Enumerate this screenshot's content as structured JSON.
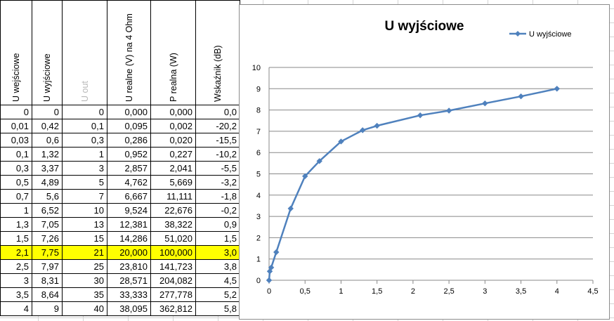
{
  "sheet": {
    "headers": [
      {
        "label": "U wejściowe",
        "muted": false
      },
      {
        "label": "U wyjściowe",
        "muted": false
      },
      {
        "label": "U out",
        "muted": true
      },
      {
        "label": "U realne (V) na 4 Ohm",
        "muted": false
      },
      {
        "label": "P realna (W)",
        "muted": false
      },
      {
        "label": "Wskaźnik (dB)",
        "muted": false
      }
    ],
    "rows": [
      [
        "0",
        "0",
        "0",
        "0,000",
        "0,000",
        "0,0"
      ],
      [
        "0,01",
        "0,42",
        "0,1",
        "0,095",
        "0,002",
        "-20,2"
      ],
      [
        "0,03",
        "0,6",
        "0,3",
        "0,286",
        "0,020",
        "-15,5"
      ],
      [
        "0,1",
        "1,32",
        "1",
        "0,952",
        "0,227",
        "-10,2"
      ],
      [
        "0,3",
        "3,37",
        "3",
        "2,857",
        "2,041",
        "-5,5"
      ],
      [
        "0,5",
        "4,89",
        "5",
        "4,762",
        "5,669",
        "-3,2"
      ],
      [
        "0,7",
        "5,6",
        "7",
        "6,667",
        "11,111",
        "-1,8"
      ],
      [
        "1",
        "6,52",
        "10",
        "9,524",
        "22,676",
        "-0,2"
      ],
      [
        "1,3",
        "7,05",
        "13",
        "12,381",
        "38,322",
        "0,9"
      ],
      [
        "1,5",
        "7,26",
        "15",
        "14,286",
        "51,020",
        "1,5"
      ],
      [
        "2,1",
        "7,75",
        "21",
        "20,000",
        "100,000",
        "3,0"
      ],
      [
        "2,5",
        "7,97",
        "25",
        "23,810",
        "141,723",
        "3,8"
      ],
      [
        "3",
        "8,31",
        "30",
        "28,571",
        "204,082",
        "4,5"
      ],
      [
        "3,5",
        "8,64",
        "35",
        "33,333",
        "277,778",
        "5,2"
      ],
      [
        "4",
        "9",
        "40",
        "38,095",
        "362,812",
        "5,8"
      ]
    ],
    "highlight_row_index": 10,
    "highlight_color": "#ffff00"
  },
  "chart_data": {
    "type": "line",
    "title": "U wyjściowe",
    "legend": "top-right",
    "series": [
      {
        "name": "U wyjściowe",
        "color": "#4f81bd",
        "x": [
          0,
          0.01,
          0.03,
          0.1,
          0.3,
          0.5,
          0.7,
          1,
          1.3,
          1.5,
          2.1,
          2.5,
          3,
          3.5,
          4
        ],
        "y": [
          0,
          0.42,
          0.6,
          1.32,
          3.37,
          4.89,
          5.6,
          6.52,
          7.05,
          7.26,
          7.75,
          7.97,
          8.31,
          8.64,
          9
        ]
      }
    ],
    "xlim": [
      0,
      4.5
    ],
    "ylim": [
      0,
      10
    ],
    "x_ticks": [
      "0",
      "0,5",
      "1",
      "1,5",
      "2",
      "2,5",
      "3",
      "3,5",
      "4",
      "4,5"
    ],
    "y_ticks": [
      "0",
      "1",
      "2",
      "3",
      "4",
      "5",
      "6",
      "7",
      "8",
      "9",
      "10"
    ],
    "grid": true
  }
}
